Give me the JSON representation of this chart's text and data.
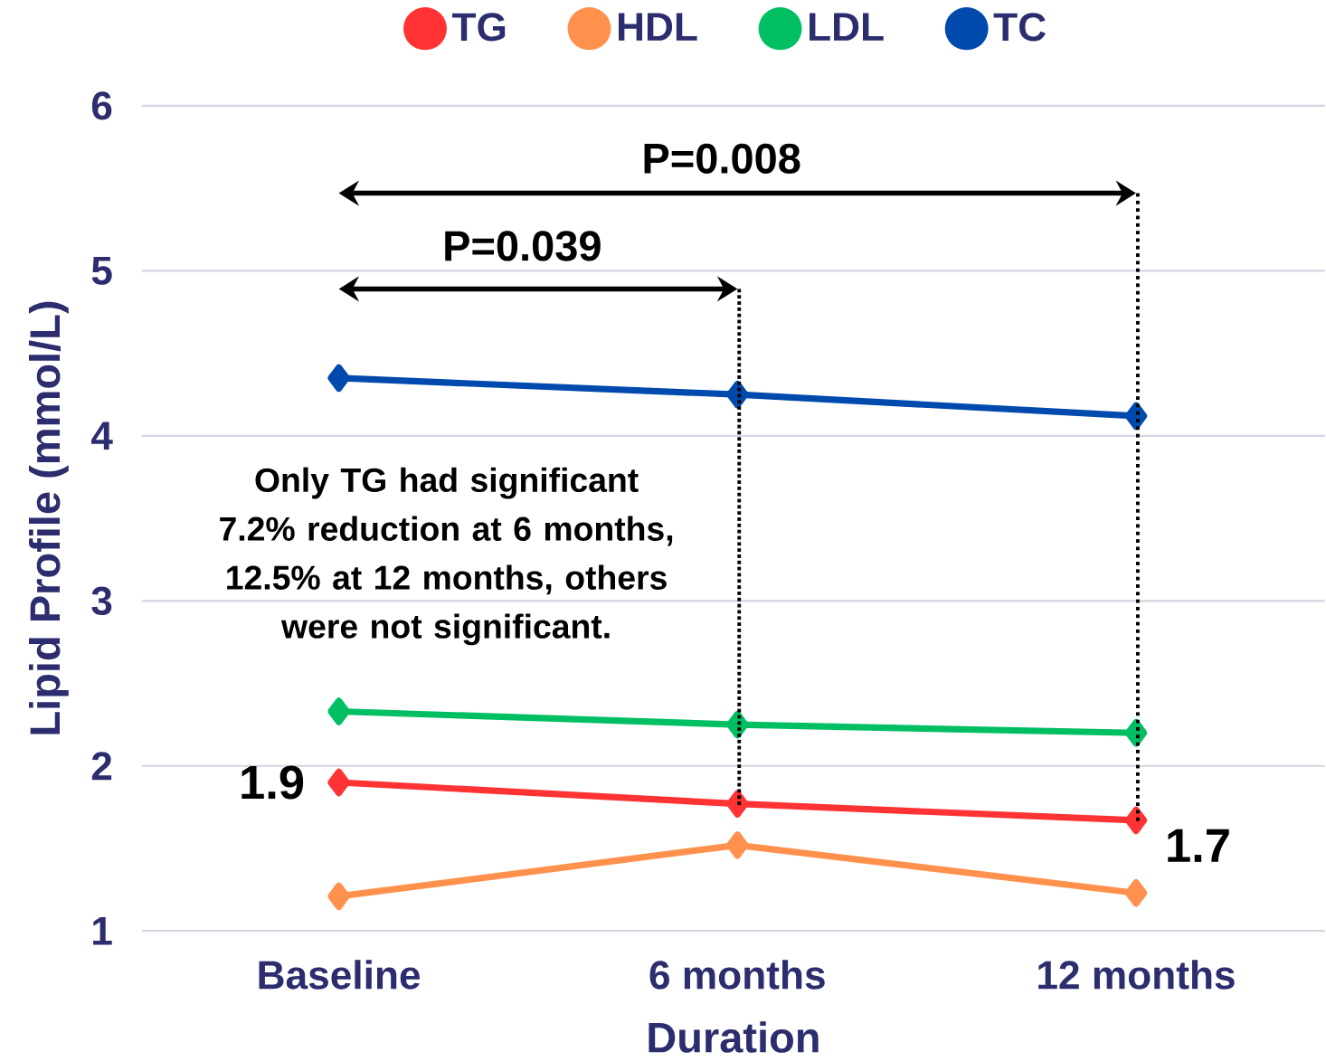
{
  "chart_data": {
    "type": "line",
    "xlabel": "Duration",
    "ylabel": "Lipid Profile (mmol/L)",
    "categories": [
      "Baseline",
      "6 months",
      "12 months"
    ],
    "series": [
      {
        "name": "TG",
        "color": "#ff3333",
        "values": [
          1.9,
          1.77,
          1.67
        ],
        "value_labels": [
          "1.9",
          null,
          "1.7"
        ]
      },
      {
        "name": "HDL",
        "color": "#ff914d",
        "values": [
          1.21,
          1.52,
          1.23
        ]
      },
      {
        "name": "LDL",
        "color": "#00bf63",
        "values": [
          2.33,
          2.25,
          2.2
        ]
      },
      {
        "name": "TC",
        "color": "#004aad",
        "values": [
          4.35,
          4.25,
          4.12
        ]
      }
    ],
    "ylim": [
      1,
      6
    ],
    "yticks": [
      1,
      2,
      3,
      4,
      5,
      6
    ],
    "grid": "y",
    "legend": "top",
    "marker": "diamond",
    "line_style": "solid",
    "annotations": [
      "P=0.008",
      "P=0.039",
      "Only TG had significant 7.2% reduction at 6 months, 12.5% at 12 months, others were not significant."
    ]
  }
}
